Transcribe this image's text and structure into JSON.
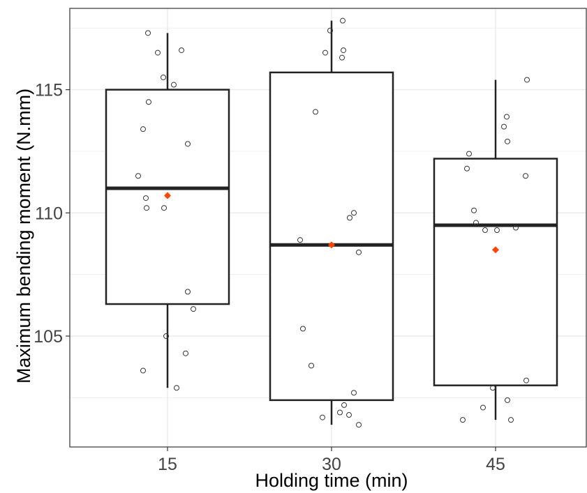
{
  "chart_data": {
    "type": "boxplot",
    "xlabel": "Holding time (min)",
    "ylabel": "Maximum bending moment (N.mm)",
    "categories": [
      "15",
      "30",
      "45"
    ],
    "ylim": [
      100.5,
      118.3
    ],
    "yticks": [
      105,
      110,
      115
    ],
    "grid": true,
    "boxes": [
      {
        "category": "15",
        "whisker_low": 102.9,
        "q1": 106.3,
        "median": 111.0,
        "q3": 115.0,
        "whisker_high": 117.3,
        "mean": 110.7,
        "points": [
          [
            -28,
            117.3
          ],
          [
            20,
            116.6
          ],
          [
            -14,
            116.5
          ],
          [
            -6,
            115.5
          ],
          [
            9,
            115.2
          ],
          [
            -27,
            114.5
          ],
          [
            -35,
            113.4
          ],
          [
            29,
            112.8
          ],
          [
            -42,
            111.5
          ],
          [
            -31,
            110.6
          ],
          [
            -30,
            110.2
          ],
          [
            -5,
            110.2
          ],
          [
            29,
            106.8
          ],
          [
            37,
            106.1
          ],
          [
            -2,
            105.0
          ],
          [
            26,
            104.3
          ],
          [
            -35,
            103.6
          ],
          [
            13,
            102.9
          ]
        ]
      },
      {
        "category": "30",
        "whisker_low": 101.4,
        "q1": 102.4,
        "median": 108.7,
        "q3": 115.7,
        "whisker_high": 117.8,
        "mean": 108.7,
        "points": [
          [
            16,
            117.8
          ],
          [
            -2,
            117.4
          ],
          [
            17,
            116.6
          ],
          [
            -9,
            116.5
          ],
          [
            15,
            116.3
          ],
          [
            -23,
            114.1
          ],
          [
            32,
            110.0
          ],
          [
            26,
            109.8
          ],
          [
            -45,
            108.9
          ],
          [
            39,
            108.4
          ],
          [
            -41,
            105.3
          ],
          [
            -29,
            103.8
          ],
          [
            32,
            102.7
          ],
          [
            18,
            102.2
          ],
          [
            12,
            101.9
          ],
          [
            25,
            101.8
          ],
          [
            -13,
            101.7
          ],
          [
            39,
            101.4
          ]
        ]
      },
      {
        "category": "45",
        "whisker_low": 101.6,
        "q1": 103.0,
        "median": 109.5,
        "q3": 112.2,
        "whisker_high": 115.4,
        "mean": 108.5,
        "points": [
          [
            45,
            115.4
          ],
          [
            16,
            113.9
          ],
          [
            12,
            113.5
          ],
          [
            17,
            112.9
          ],
          [
            -38,
            112.4
          ],
          [
            -41,
            111.8
          ],
          [
            43,
            111.5
          ],
          [
            -31,
            110.1
          ],
          [
            -28,
            109.6
          ],
          [
            29,
            109.4
          ],
          [
            -15,
            109.3
          ],
          [
            2,
            109.3
          ],
          [
            44,
            103.2
          ],
          [
            -4,
            102.9
          ],
          [
            17,
            102.4
          ],
          [
            -18,
            102.1
          ],
          [
            22,
            101.6
          ],
          [
            -47,
            101.6
          ]
        ]
      }
    ],
    "colors": {
      "box_stroke": "#222222",
      "point_stroke": "#333333",
      "mean_marker": "#ff4500",
      "grid": "#ebebeb",
      "panel_border": "#333333"
    }
  }
}
